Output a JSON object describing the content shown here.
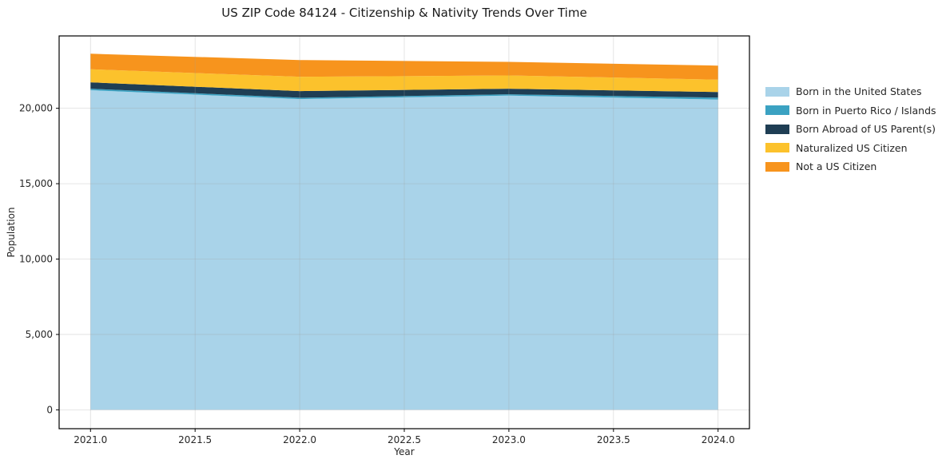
{
  "chart_data": {
    "type": "area",
    "stacked": true,
    "title": "US ZIP Code 84124 - Citizenship & Nativity Trends Over Time",
    "xlabel": "Year",
    "ylabel": "Population",
    "x": [
      2021,
      2022,
      2023,
      2024
    ],
    "series": [
      {
        "name": "Born in the United States",
        "color": "#a9d3e9",
        "values": [
          21200,
          20610,
          20840,
          20580
        ]
      },
      {
        "name": "Born in Puerto Rico / Islands",
        "color": "#3ba2c2",
        "values": [
          100,
          90,
          90,
          130
        ]
      },
      {
        "name": "Born Abroad of US Parent(s)",
        "color": "#1f3e54",
        "values": [
          420,
          440,
          370,
          370
        ]
      },
      {
        "name": "Naturalized US Citizen",
        "color": "#fcc22c",
        "values": [
          870,
          950,
          880,
          820
        ]
      },
      {
        "name": "Not a US Citizen",
        "color": "#f7941d",
        "values": [
          1030,
          1110,
          900,
          930
        ]
      }
    ],
    "totals": [
      23620,
      23200,
      23080,
      22830
    ],
    "xlim": [
      2020.85,
      2024.15
    ],
    "ylim": [
      -1250,
      24800
    ],
    "xticks": [
      2021.0,
      2021.5,
      2022.0,
      2022.5,
      2023.0,
      2023.5,
      2024.0
    ],
    "xtick_labels": [
      "2021.0",
      "2021.5",
      "2022.0",
      "2022.5",
      "2023.0",
      "2023.5",
      "2024.0"
    ],
    "yticks": [
      0,
      5000,
      10000,
      15000,
      20000
    ],
    "ytick_labels": [
      "0",
      "5,000",
      "10,000",
      "15,000",
      "20,000"
    ],
    "grid": true,
    "grid_color": "#9e9e9e",
    "spine_color": "#000000",
    "legend_position": "right-outside"
  }
}
